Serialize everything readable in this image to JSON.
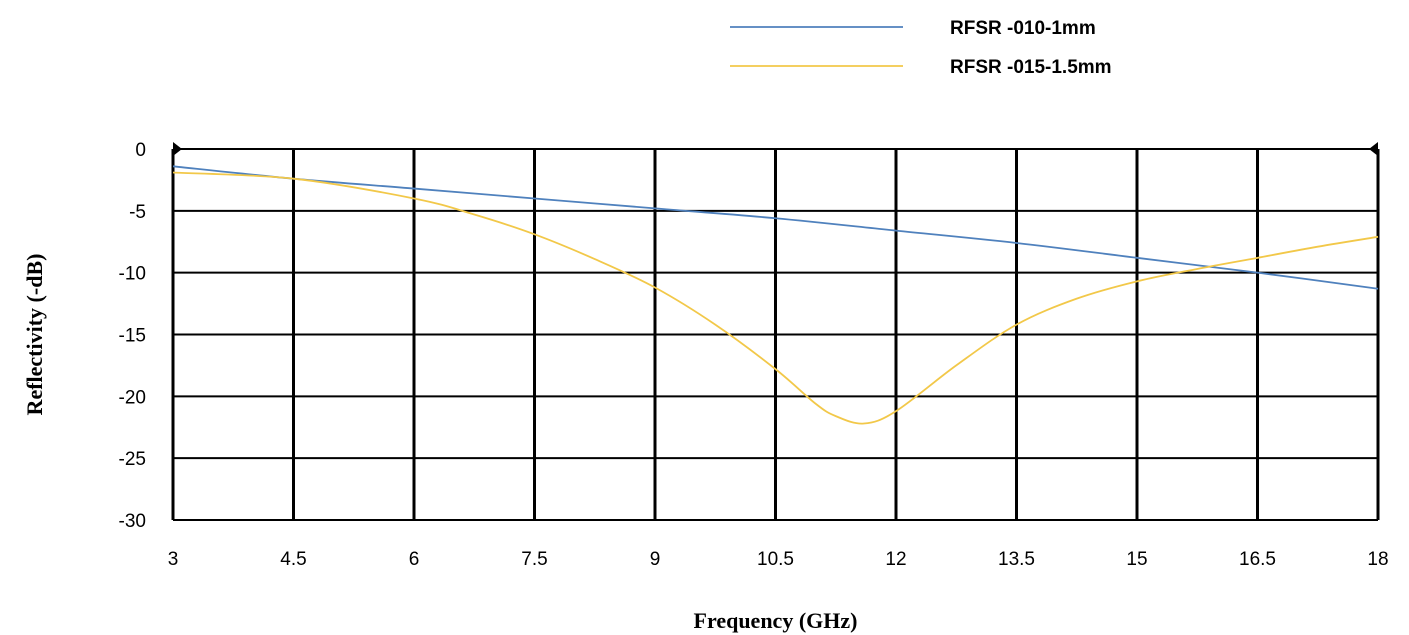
{
  "chart_data": {
    "type": "line",
    "title": "",
    "xlabel": "Frequency (GHz)",
    "ylabel": "Reflectivity (-dB)",
    "xlim": [
      3,
      18
    ],
    "ylim": [
      -30,
      0
    ],
    "x_ticks": [
      "3",
      "4.5",
      "6",
      "7.5",
      "9",
      "10.5",
      "12",
      "13.5",
      "15",
      "16.5",
      "18"
    ],
    "y_ticks": [
      "0",
      "-5",
      "-10",
      "-15",
      "-20",
      "-25",
      "-30"
    ],
    "grid": true,
    "legend_position": "top-right",
    "series": [
      {
        "name": "RFSR -010-1mm",
        "color": "#4f81bd",
        "x": [
          3,
          4.5,
          6,
          7.5,
          9,
          10.5,
          12,
          13.5,
          15,
          16.5,
          18
        ],
        "values": [
          -1.4,
          -2.4,
          -3.2,
          -4.0,
          -4.8,
          -5.6,
          -6.6,
          -7.6,
          -8.8,
          -10.0,
          -11.3
        ]
      },
      {
        "name": "RFSR -015-1.5mm",
        "color": "#f2c849",
        "x": [
          3,
          4.5,
          6,
          6.75,
          7.5,
          8.25,
          9,
          9.75,
          10.5,
          11.0,
          11.25,
          11.6,
          12,
          12.75,
          13.5,
          14.25,
          15,
          15.75,
          16.5,
          17.25,
          18
        ],
        "values": [
          -1.9,
          -2.4,
          -4.0,
          -5.3,
          -6.9,
          -8.9,
          -11.2,
          -14.2,
          -17.8,
          -20.6,
          -21.6,
          -22.2,
          -21.2,
          -17.5,
          -14.2,
          -12.1,
          -10.7,
          -9.7,
          -8.8,
          -7.9,
          -7.1
        ]
      }
    ]
  }
}
